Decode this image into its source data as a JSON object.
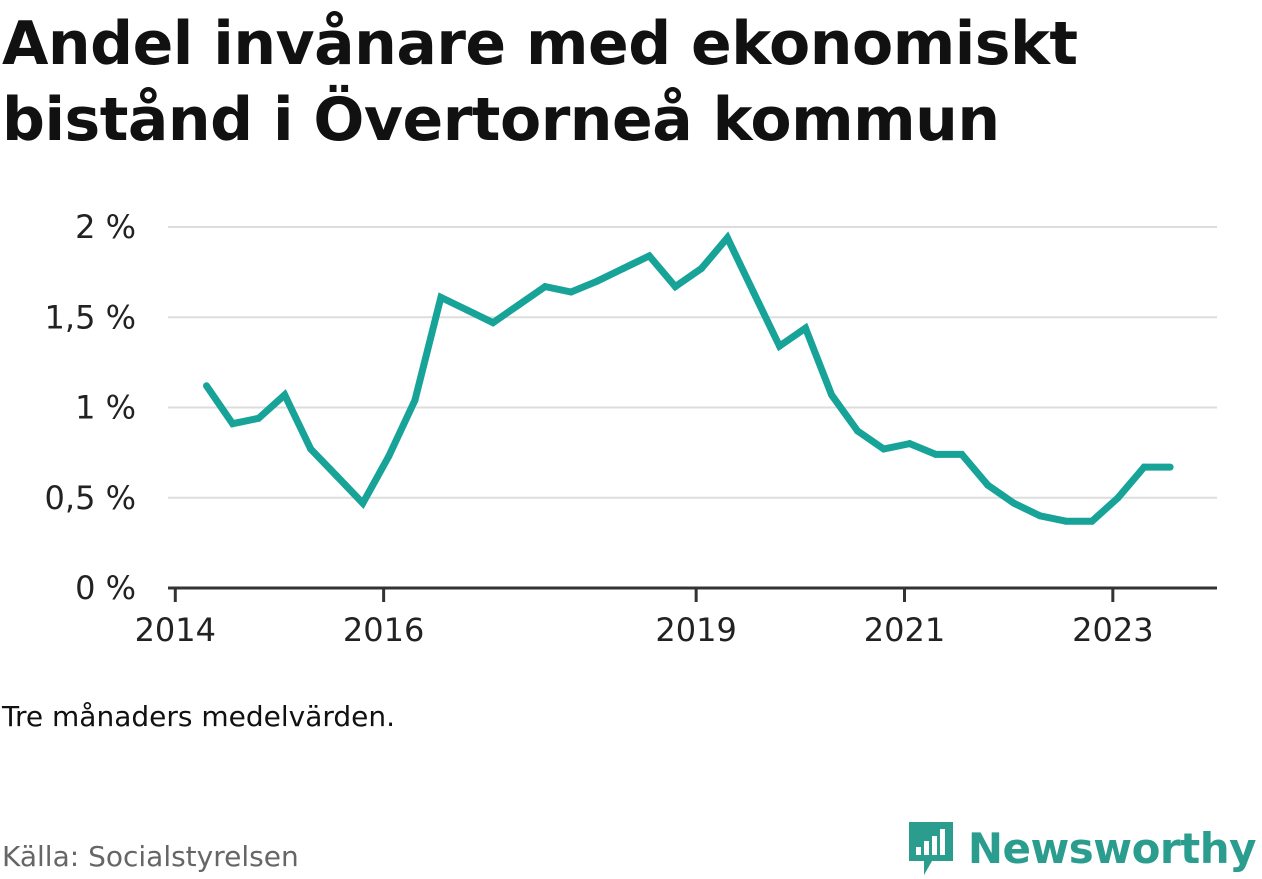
{
  "title": "Andel invånare med ekonomiskt bistånd i Övertorneå kommun",
  "note": "Tre månaders medelvärden.",
  "source": "Källa: Socialstyrelsen",
  "brand": "Newsworthy",
  "colors": {
    "line": "#17a398",
    "grid": "#dddddd",
    "axis": "#333333",
    "brand": "#2a9d8f"
  },
  "chart_data": {
    "type": "line",
    "title": "Andel invånare med ekonomiskt bistånd i Övertorneå kommun",
    "xlabel": "",
    "ylabel": "",
    "ylim": [
      0,
      2
    ],
    "xlim": [
      2013.93,
      2024.0
    ],
    "grid": true,
    "y_ticks": [
      {
        "value": 0,
        "label": "0 %"
      },
      {
        "value": 0.5,
        "label": "0,5 %"
      },
      {
        "value": 1,
        "label": "1 %"
      },
      {
        "value": 1.5,
        "label": "1,5 %"
      },
      {
        "value": 2,
        "label": "2 %"
      }
    ],
    "x_ticks": [
      {
        "value": 2014.0,
        "label": "2014"
      },
      {
        "value": 2016.0,
        "label": "2016"
      },
      {
        "value": 2019.0,
        "label": "2019"
      },
      {
        "value": 2021.0,
        "label": "2021"
      },
      {
        "value": 2023.0,
        "label": "2023"
      }
    ],
    "series": [
      {
        "x": [
          2014.3,
          2014.55,
          2014.8,
          2015.05,
          2015.3,
          2015.55,
          2015.8,
          2016.05,
          2016.3,
          2016.55,
          2016.8,
          2017.05,
          2017.3,
          2017.55,
          2017.8,
          2018.05,
          2018.3,
          2018.55,
          2018.8,
          2019.05,
          2019.3,
          2019.55,
          2019.8,
          2020.05,
          2020.3,
          2020.55,
          2020.8,
          2021.05,
          2021.3,
          2021.55,
          2021.8,
          2022.05,
          2022.3,
          2022.55,
          2022.8,
          2023.05,
          2023.3,
          2023.55
        ],
        "y": [
          1.12,
          0.91,
          0.94,
          1.07,
          0.77,
          0.62,
          0.47,
          0.73,
          1.04,
          1.61,
          1.54,
          1.47,
          1.57,
          1.67,
          1.64,
          1.7,
          1.77,
          1.84,
          1.67,
          1.77,
          1.94,
          1.64,
          1.34,
          1.44,
          1.07,
          0.87,
          0.77,
          0.8,
          0.74,
          0.74,
          0.57,
          0.47,
          0.4,
          0.37,
          0.37,
          0.5,
          0.67,
          0.67
        ]
      }
    ]
  }
}
